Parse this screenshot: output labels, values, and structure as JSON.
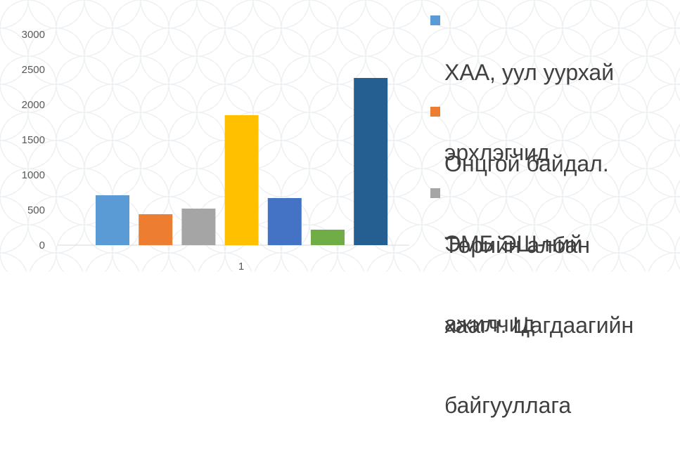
{
  "chart_data": {
    "type": "bar",
    "categories": [
      "1"
    ],
    "series": [
      {
        "name": "ХАА, уул уурхай эрхлэгчид",
        "values": [
          710
        ],
        "color": "#5B9BD5"
      },
      {
        "name": "Онцгой байдал. ЭМБ ЭШ-ний ажилчид",
        "values": [
          440
        ],
        "color": "#ED7D31"
      },
      {
        "name": "Төрийн албан хаагч. Цагдаагийн байгууллага",
        "values": [
          520
        ],
        "color": "#A5A5A5"
      },
      {
        "values": [
          1850
        ],
        "color": "#FFC000"
      },
      {
        "values": [
          670
        ],
        "color": "#4472C4"
      },
      {
        "values": [
          220
        ],
        "color": "#70AD47"
      },
      {
        "values": [
          2380
        ],
        "color": "#255E91"
      }
    ],
    "y_ticks": [
      "0",
      "500",
      "1000",
      "1500",
      "2000",
      "2500",
      "3000"
    ],
    "ylim": [
      0,
      3000
    ],
    "grid": false,
    "legend_position": "right"
  },
  "legend": {
    "item1_lines": [
      "ХАА, уул уурхай",
      "эрхлэгчид"
    ],
    "item2_lines": [
      "Онцгой байдал.",
      "ЭМБ ЭШ-ний",
      "ажилчид"
    ],
    "item3_lines": [
      "Төрийн албан",
      "хаагч. Цагдаагийн",
      "байгууллага"
    ]
  }
}
